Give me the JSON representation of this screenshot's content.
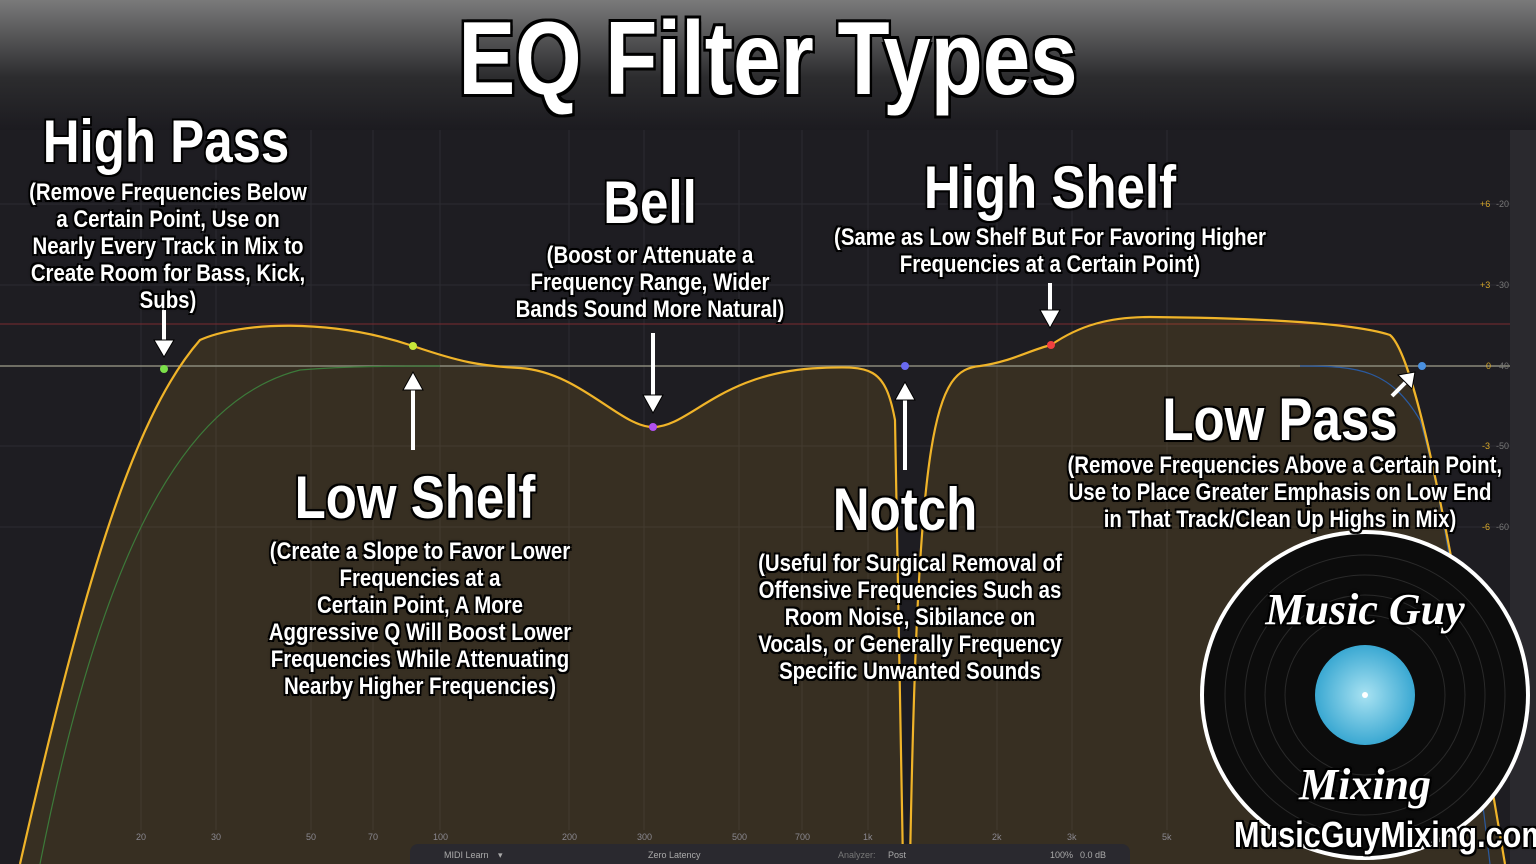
{
  "title": "EQ Filter Types",
  "annotations": {
    "high_pass": {
      "heading": "High Pass",
      "desc": [
        "(Remove Frequencies Below",
        "a Certain Point, Use on",
        "Nearly Every Track in Mix to",
        "Create Room for Bass, Kick,",
        "Subs)"
      ]
    },
    "low_shelf": {
      "heading": "Low Shelf",
      "desc": [
        "(Create a Slope to Favor Lower",
        "Frequencies at a",
        "Certain Point, A More",
        "Aggressive Q Will Boost Lower",
        "Frequencies While Attenuating",
        "Nearby Higher Frequencies)"
      ]
    },
    "bell": {
      "heading": "Bell",
      "desc": [
        "(Boost or Attenuate a",
        "Frequency Range, Wider",
        "Bands Sound More Natural)"
      ]
    },
    "notch": {
      "heading": "Notch",
      "desc": [
        "(Useful for Surgical Removal of",
        "Offensive Frequencies Such as",
        "Room Noise, Sibilance on",
        "Vocals, or Generally Frequency",
        "Specific Unwanted Sounds"
      ]
    },
    "high_shelf": {
      "heading": "High Shelf",
      "desc": [
        "(Same as Low Shelf But For Favoring Higher",
        "Frequencies at a Certain Point)"
      ]
    },
    "low_pass": {
      "heading": "Low Pass",
      "desc": [
        "(Remove Frequencies Above a Certain Point,",
        "Use to Place Greater Emphasis on Low End",
        "in That Track/Clean Up Highs in Mix)"
      ]
    }
  },
  "frequency_labels": [
    "20",
    "30",
    "50",
    "70",
    "100",
    "200",
    "300",
    "500",
    "700",
    "1k",
    "2k",
    "3k",
    "5k"
  ],
  "gain_labels": [
    {
      "gain": "+6",
      "level": "-20"
    },
    {
      "gain": "+3",
      "level": "-30"
    },
    {
      "gain": "0",
      "level": "-40"
    },
    {
      "gain": "-3",
      "level": "-50"
    },
    {
      "gain": "-6",
      "level": "-60"
    }
  ],
  "bottom_bar": {
    "midi_learn": "MIDI Learn",
    "latency": "Zero Latency",
    "analyzer_label": "Analyzer:",
    "analyzer_value": "Post",
    "zoom": "100%",
    "gain": "0.0 dB"
  },
  "logo": {
    "top_text": "Music Guy",
    "bottom_text": "Mixing"
  },
  "website": "MusicGuyMixing.com",
  "colors": {
    "curve": "#f0b429",
    "band_high_pass": "#7ce04a",
    "band_low_shelf": "#c8e83a",
    "band_bell": "#b050f0",
    "band_notch": "#6a6af0",
    "band_high_shelf": "#f04040",
    "band_low_pass": "#4a90e0",
    "logo_label": "#4fb8e0"
  }
}
